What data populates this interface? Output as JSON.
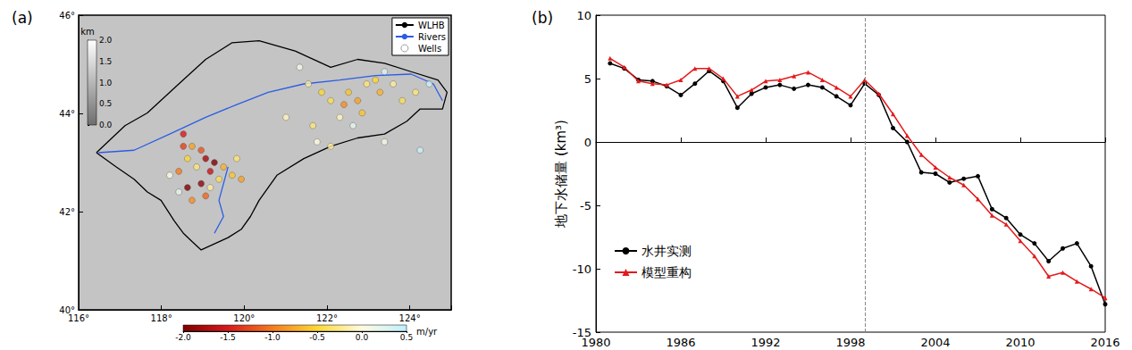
{
  "chart_data": [
    {
      "type": "scatter",
      "title": "(a)",
      "xlim": [
        116,
        125
      ],
      "xticks": [
        {
          "value": 116,
          "label": "116°"
        },
        {
          "value": 118,
          "label": "118°"
        },
        {
          "value": 120,
          "label": "120°"
        },
        {
          "value": 122,
          "label": "122°"
        },
        {
          "value": 124,
          "label": "124°"
        }
      ],
      "ylim": [
        40,
        46
      ],
      "yticks": [
        {
          "value": 40,
          "label": "40°"
        },
        {
          "value": 42,
          "label": "42°"
        },
        {
          "value": 44,
          "label": "44°"
        },
        {
          "value": 46,
          "label": "46°"
        }
      ],
      "grid": false,
      "legend": "upper right",
      "series": [
        {
          "name": "WLHB",
          "type": "line",
          "color": "#000000",
          "line_style": "solid",
          "values": [
            [
              116.43,
              43.2
            ],
            [
              117.12,
              43.75
            ],
            [
              117.66,
              44.01
            ],
            [
              118.42,
              44.6
            ],
            [
              119.07,
              45.1
            ],
            [
              119.71,
              45.44
            ],
            [
              120.36,
              45.48
            ],
            [
              121.23,
              45.27
            ],
            [
              122.09,
              44.94
            ],
            [
              122.74,
              45.1
            ],
            [
              123.39,
              45.02
            ],
            [
              124.03,
              44.85
            ],
            [
              124.68,
              44.68
            ],
            [
              124.9,
              44.43
            ],
            [
              124.79,
              44.09
            ],
            [
              124.25,
              44.09
            ],
            [
              123.93,
              43.84
            ],
            [
              123.39,
              43.58
            ],
            [
              122.74,
              43.5
            ],
            [
              122.09,
              43.33
            ],
            [
              121.44,
              43.08
            ],
            [
              120.79,
              42.74
            ],
            [
              120.36,
              42.23
            ],
            [
              120.15,
              41.9
            ],
            [
              119.93,
              41.64
            ],
            [
              119.61,
              41.47
            ],
            [
              118.96,
              41.22
            ],
            [
              118.74,
              41.39
            ],
            [
              118.53,
              41.56
            ],
            [
              118.31,
              41.81
            ],
            [
              117.99,
              42.23
            ],
            [
              117.66,
              42.4
            ],
            [
              117.34,
              42.66
            ],
            [
              116.91,
              42.91
            ],
            [
              116.43,
              43.2
            ]
          ]
        },
        {
          "name": "Rivers",
          "type": "line",
          "color": "#2b5ce6",
          "line_style": "solid",
          "values": [
            [
              116.48,
              43.2
            ],
            [
              117.34,
              43.25
            ],
            [
              118.2,
              43.58
            ],
            [
              119.07,
              43.92
            ],
            [
              119.82,
              44.18
            ],
            [
              120.58,
              44.43
            ],
            [
              121.44,
              44.6
            ],
            [
              122.31,
              44.68
            ],
            [
              123.17,
              44.77
            ],
            [
              124.03,
              44.8
            ],
            [
              124.57,
              44.6
            ],
            [
              124.79,
              44.26
            ],
            null,
            [
              119.61,
              42.91
            ],
            [
              119.5,
              42.57
            ],
            [
              119.39,
              42.23
            ],
            [
              119.5,
              41.9
            ],
            [
              119.28,
              41.56
            ]
          ]
        },
        {
          "name": "Wells",
          "type": "scatter",
          "marker": "circle",
          "values": [
            [
              118.53,
              43.58,
              -1.5
            ],
            [
              118.74,
              43.33,
              -0.8
            ],
            [
              118.96,
              43.25,
              -1.2
            ],
            [
              118.63,
              43.08,
              -0.5
            ],
            [
              119.07,
              43.08,
              -1.8
            ],
            [
              119.28,
              43.0,
              -2.0
            ],
            [
              119.18,
              42.82,
              -1.6
            ],
            [
              118.85,
              42.91,
              -0.3
            ],
            [
              118.42,
              42.82,
              -1.0
            ],
            [
              119.5,
              42.91,
              -0.7
            ],
            [
              119.71,
              42.74,
              -0.6
            ],
            [
              119.39,
              42.66,
              -0.4
            ],
            [
              118.96,
              42.57,
              -1.9
            ],
            [
              118.63,
              42.49,
              -2.0
            ],
            [
              119.18,
              42.49,
              -0.2
            ],
            [
              118.74,
              42.23,
              -0.9
            ],
            [
              118.42,
              42.4,
              0.2
            ],
            [
              118.2,
              42.74,
              0.0
            ],
            [
              119.93,
              42.66,
              -0.8
            ],
            [
              119.82,
              43.08,
              -0.3
            ],
            [
              118.53,
              43.33,
              -1.3
            ],
            [
              119.07,
              42.32,
              -1.1
            ],
            [
              121.34,
              44.94,
              0.1
            ],
            [
              121.55,
              44.6,
              -0.2
            ],
            [
              121.87,
              44.43,
              -0.5
            ],
            [
              122.09,
              44.26,
              -0.4
            ],
            [
              122.52,
              44.43,
              -0.6
            ],
            [
              122.74,
              44.26,
              -0.8
            ],
            [
              122.96,
              44.6,
              -0.3
            ],
            [
              123.17,
              44.68,
              -0.5
            ],
            [
              123.28,
              44.43,
              -0.7
            ],
            [
              123.6,
              44.6,
              -0.2
            ],
            [
              123.39,
              44.85,
              0.3
            ],
            [
              123.82,
              44.26,
              -0.4
            ],
            [
              122.31,
              43.92,
              -0.1
            ],
            [
              122.63,
              43.75,
              0.2
            ],
            [
              121.66,
              43.75,
              -0.3
            ],
            [
              121.76,
              43.42,
              0.0
            ],
            [
              122.09,
              43.33,
              -0.2
            ],
            [
              123.39,
              43.42,
              0.1
            ],
            [
              124.47,
              44.6,
              0.4
            ],
            [
              124.14,
              44.43,
              -0.3
            ],
            [
              124.25,
              43.25,
              0.4
            ],
            [
              121.01,
              43.92,
              -0.1
            ],
            [
              122.85,
              44.01,
              -0.6
            ],
            [
              122.41,
              44.18,
              -0.9
            ]
          ]
        }
      ],
      "colorbar": {
        "label": "m/yr",
        "range": [
          -2,
          0.5
        ],
        "ticks": [
          {
            "value": -2,
            "label": "-2.0"
          },
          -1.5,
          {
            "value": -1,
            "label": "-1.0"
          },
          -0.5,
          {
            "value": 0,
            "label": "0.0"
          },
          0.5
        ],
        "colors": [
          "#7f0000",
          "#d7191c",
          "#f57c1f",
          "#fdd835",
          "#fffbe0",
          "#bfefff"
        ]
      },
      "elevation_bar": {
        "label": "km",
        "range": [
          0,
          2
        ],
        "ticks": [
          {
            "value": 0,
            "label": "0.0"
          },
          0.5,
          {
            "value": 1,
            "label": "1.0"
          },
          1.5,
          {
            "value": 2,
            "label": "2.0"
          }
        ],
        "colors": [
          "#6e6e6e",
          "#ffffff"
        ]
      }
    },
    {
      "type": "line",
      "title": "(b)",
      "y_label": "地下水储量 (km³)",
      "x": [
        1981,
        1982,
        1983,
        1984,
        1985,
        1986,
        1987,
        1988,
        1989,
        1990,
        1991,
        1992,
        1993,
        1994,
        1995,
        1996,
        1997,
        1998,
        1999,
        2000,
        2001,
        2002,
        2003,
        2004,
        2005,
        2006,
        2007,
        2008,
        2009,
        2010,
        2011,
        2012,
        2013,
        2014,
        2015,
        2016
      ],
      "xlim": [
        1980,
        2016
      ],
      "xticks": [
        1980,
        1986,
        1992,
        1998,
        2004,
        2010,
        2016
      ],
      "ylim": [
        -15,
        10
      ],
      "yticks": [
        -15,
        -10,
        -5,
        0,
        5,
        10
      ],
      "grid": false,
      "legend": "lower left",
      "vlines": [
        1999
      ],
      "series": [
        {
          "name": "水井实测",
          "color": "#000000",
          "marker": "circle",
          "line_style": "solid",
          "values": [
            6.2,
            5.8,
            4.9,
            4.8,
            4.4,
            3.7,
            4.6,
            5.6,
            4.8,
            2.7,
            3.8,
            4.3,
            4.5,
            4.2,
            4.5,
            4.3,
            3.6,
            2.9,
            4.6,
            3.7,
            1.1,
            0.0,
            -2.4,
            -2.5,
            -3.2,
            -2.9,
            -2.7,
            -5.3,
            -6.0,
            -7.3,
            -8.0,
            -9.4,
            -8.4,
            -8.0,
            -9.8,
            -12.8
          ]
        },
        {
          "name": "模型重构",
          "color": "#e41a1c",
          "marker": "triangle",
          "line_style": "solid",
          "values": [
            6.6,
            5.9,
            4.8,
            4.6,
            4.5,
            4.9,
            5.8,
            5.8,
            5.0,
            3.6,
            4.1,
            4.8,
            4.9,
            5.2,
            5.5,
            4.9,
            4.3,
            3.6,
            4.9,
            3.8,
            2.2,
            0.5,
            -1.0,
            -2.0,
            -2.8,
            -3.4,
            -4.5,
            -5.8,
            -6.5,
            -7.8,
            -9.0,
            -10.6,
            -10.3,
            -11.0,
            -11.6,
            -12.3
          ]
        }
      ]
    }
  ]
}
